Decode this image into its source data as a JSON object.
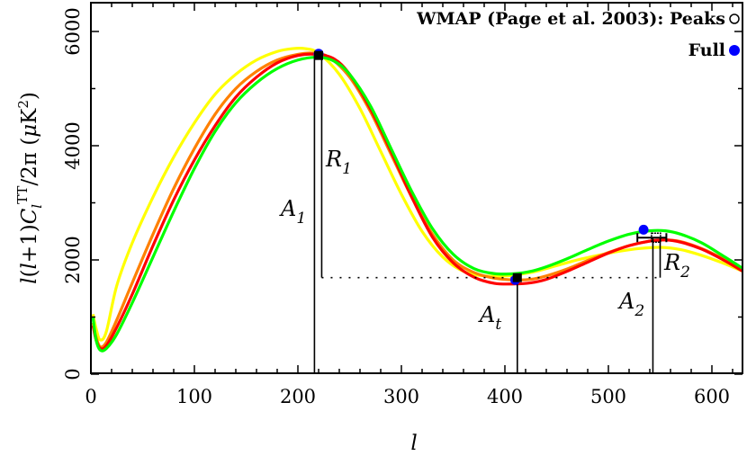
{
  "chart_data": {
    "type": "line",
    "title": "",
    "xlabel": "l",
    "ylabel": "l(l+1) C_l^TT / 2π (μK²)",
    "xlim": [
      0,
      630
    ],
    "ylim": [
      0,
      6500
    ],
    "x_ticks": [
      0,
      100,
      200,
      300,
      400,
      500,
      600
    ],
    "y_ticks": [
      0,
      2000,
      4000,
      6000
    ],
    "x_minor_step": 20,
    "y_minor_step": 1000,
    "grid": false,
    "legend": {
      "position": "top-right",
      "entries": [
        {
          "label": "WMAP (Page et al. 2003): Peaks",
          "marker": "open-circle",
          "color": "#000000"
        },
        {
          "label": "Full",
          "marker": "filled-circle",
          "color": "#0000ff"
        }
      ]
    },
    "series": [
      {
        "name": "yellow-model",
        "color": "#ffff00",
        "x": [
          2,
          5,
          9,
          15,
          25,
          40,
          60,
          80,
          100,
          120,
          140,
          160,
          180,
          195,
          207,
          220,
          240,
          260,
          280,
          300,
          320,
          340,
          360,
          380,
          400,
          415,
          430,
          450,
          470,
          490,
          510,
          530,
          550,
          570,
          590,
          610,
          630
        ],
        "values": [
          1050,
          800,
          600,
          750,
          1550,
          2300,
          3100,
          3800,
          4400,
          4900,
          5250,
          5500,
          5650,
          5700,
          5700,
          5620,
          5250,
          4650,
          3900,
          3150,
          2500,
          2050,
          1800,
          1720,
          1720,
          1750,
          1800,
          1900,
          2000,
          2080,
          2150,
          2200,
          2220,
          2180,
          2080,
          1950,
          1800
        ]
      },
      {
        "name": "orange-model",
        "color": "#ff8000",
        "x": [
          2,
          5,
          9,
          15,
          25,
          40,
          60,
          80,
          100,
          120,
          140,
          160,
          180,
          200,
          215,
          230,
          250,
          270,
          290,
          310,
          330,
          350,
          370,
          390,
          410,
          425,
          440,
          460,
          480,
          500,
          520,
          540,
          555,
          570,
          590,
          610,
          630
        ],
        "values": [
          900,
          650,
          480,
          560,
          950,
          1600,
          2450,
          3250,
          3950,
          4550,
          5000,
          5300,
          5500,
          5600,
          5620,
          5550,
          5200,
          4600,
          3850,
          3100,
          2450,
          2000,
          1780,
          1680,
          1650,
          1660,
          1720,
          1840,
          1990,
          2130,
          2250,
          2330,
          2350,
          2320,
          2200,
          2030,
          1830
        ]
      },
      {
        "name": "red-model",
        "color": "#ff0000",
        "x": [
          2,
          5,
          9,
          15,
          25,
          40,
          60,
          80,
          100,
          120,
          140,
          160,
          180,
          200,
          218,
          235,
          250,
          270,
          290,
          310,
          330,
          350,
          370,
          390,
          410,
          425,
          440,
          460,
          480,
          500,
          520,
          540,
          555,
          570,
          590,
          610,
          630
        ],
        "values": [
          850,
          600,
          450,
          500,
          820,
          1400,
          2250,
          3050,
          3750,
          4350,
          4850,
          5200,
          5450,
          5580,
          5600,
          5520,
          5250,
          4650,
          3900,
          3100,
          2400,
          1950,
          1700,
          1590,
          1580,
          1600,
          1660,
          1800,
          1960,
          2120,
          2250,
          2330,
          2350,
          2310,
          2190,
          2010,
          1800
        ]
      },
      {
        "name": "green-model",
        "color": "#00ff00",
        "x": [
          2,
          5,
          9,
          15,
          25,
          40,
          60,
          80,
          100,
          120,
          140,
          160,
          180,
          200,
          220,
          235,
          250,
          270,
          290,
          310,
          330,
          350,
          370,
          390,
          410,
          425,
          440,
          460,
          480,
          500,
          520,
          540,
          555,
          570,
          590,
          610,
          630
        ],
        "values": [
          1000,
          600,
          420,
          450,
          700,
          1250,
          2050,
          2850,
          3600,
          4250,
          4750,
          5100,
          5350,
          5500,
          5550,
          5480,
          5250,
          4700,
          3950,
          3200,
          2550,
          2100,
          1850,
          1760,
          1760,
          1800,
          1880,
          2020,
          2180,
          2330,
          2450,
          2510,
          2510,
          2450,
          2300,
          2080,
          1850
        ]
      }
    ],
    "points": {
      "peaks_open": [
        {
          "l": 220,
          "value": 5580,
          "label": "first peak"
        },
        {
          "l": 412,
          "value": 1690,
          "label": "first trough"
        },
        {
          "l": 546,
          "value": 2390,
          "label": "second peak",
          "xerr": [
            528,
            556
          ]
        }
      ],
      "full_filled": [
        {
          "l": 220,
          "value": 5610
        },
        {
          "l": 410,
          "value": 1650
        },
        {
          "l": 534,
          "value": 2530
        }
      ]
    },
    "annotations": [
      {
        "text": "A",
        "sub": "1",
        "note": "height of first peak, vertical line at l≈216"
      },
      {
        "text": "R",
        "sub": "1",
        "note": "first peak minus trough, line at l≈223"
      },
      {
        "text": "A",
        "sub": "t",
        "note": "trough height, line at l≈412"
      },
      {
        "text": "A",
        "sub": "2",
        "note": "second peak height, line at l≈543"
      },
      {
        "text": "R",
        "sub": "2",
        "note": "second peak minus trough, line at l≈550"
      }
    ],
    "reference_line": {
      "style": "dotted",
      "value": 1690,
      "from_l": 223,
      "to_l": 550
    }
  },
  "labels": {
    "legend_peaks": "WMAP (Page et al. 2003): Peaks",
    "legend_full": "Full",
    "xlabel": "l",
    "A1": "A",
    "A1_sub": "1",
    "R1": "R",
    "R1_sub": "1",
    "At": "A",
    "At_sub": "t",
    "A2": "A",
    "A2_sub": "2",
    "R2": "R",
    "R2_sub": "2"
  }
}
